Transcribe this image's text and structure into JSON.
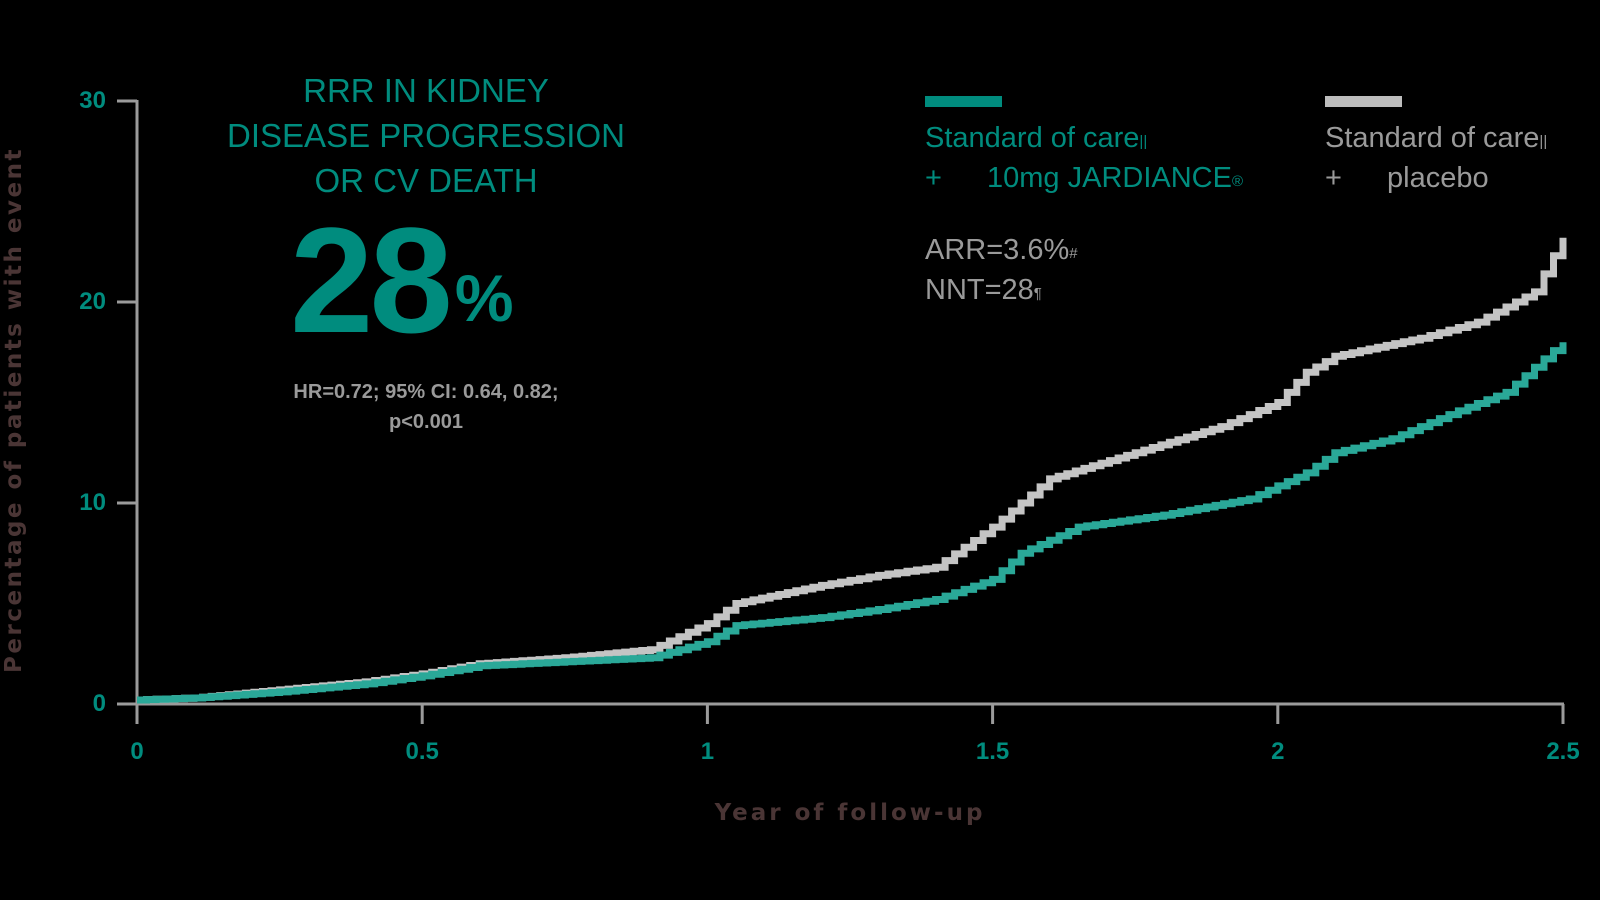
{
  "headline": {
    "lines": [
      "RRR IN KIDNEY",
      "DISEASE PROGRESSION",
      "OR CV DEATH"
    ],
    "value": "28",
    "value_unit": "%",
    "hr_line1": "HR=0.72; 95% CI: 0.64, 0.82;",
    "hr_line2": "p<0.001"
  },
  "legend": {
    "series": [
      {
        "line1": "Standard of care",
        "line1_mark": "||",
        "plus": "+",
        "line2": "10mg JARDIANCE",
        "line2_mark": "®",
        "color": "#008c7e",
        "swatch_color": "#008c7e"
      },
      {
        "line1": "Standard of care",
        "line1_mark": "||",
        "plus": "+",
        "line2": "placebo",
        "line2_mark": "",
        "color": "#9a9a9a",
        "swatch_color": "#bdbdbd"
      }
    ]
  },
  "stats": {
    "arr": "ARR=3.6%",
    "arr_mark": "#",
    "nnt": "NNT=28",
    "nnt_mark": "¶"
  },
  "axes": {
    "ylabel": "Percentage of patients with event",
    "xlabel": "Year of follow-up",
    "yticks": [
      "0",
      "10",
      "20",
      "30"
    ],
    "xticks": [
      "0",
      "0.5",
      "1",
      "1.5",
      "2",
      "2.5"
    ]
  },
  "colors": {
    "teal": "#008c7e",
    "teal_line": "#2aa898",
    "gray_text": "#9a9a9a",
    "gray_line": "#c4c4c4",
    "axis": "#9b9b9b",
    "axis_title": "#4a3535",
    "background": "#000000"
  },
  "chart_data": {
    "type": "line",
    "title": "RRR in kidney disease progression or CV death: 28%",
    "xlabel": "Year of follow-up",
    "ylabel": "Percentage of patients with event",
    "xlim": [
      0,
      2.5
    ],
    "ylim": [
      0,
      30
    ],
    "xticks": [
      0,
      0.5,
      1,
      1.5,
      2,
      2.5
    ],
    "yticks": [
      0,
      10,
      20,
      30
    ],
    "grid": false,
    "legend_position": "top-right",
    "series": [
      {
        "name": "Standard of care + 10mg JARDIANCE",
        "color": "#2aa898",
        "x": [
          0,
          0.1,
          0.25,
          0.4,
          0.5,
          0.6,
          0.75,
          0.9,
          1.0,
          1.05,
          1.2,
          1.3,
          1.4,
          1.5,
          1.55,
          1.65,
          1.8,
          1.95,
          2.05,
          2.1,
          2.2,
          2.3,
          2.4,
          2.5
        ],
        "values": [
          0.2,
          0.3,
          0.6,
          1.0,
          1.4,
          1.9,
          2.1,
          2.3,
          3.1,
          3.9,
          4.3,
          4.7,
          5.2,
          6.2,
          7.5,
          8.8,
          9.4,
          10.2,
          11.5,
          12.5,
          13.2,
          14.4,
          15.5,
          18.0
        ]
      },
      {
        "name": "Standard of care + placebo",
        "color": "#c4c4c4",
        "x": [
          0,
          0.1,
          0.25,
          0.4,
          0.5,
          0.6,
          0.75,
          0.9,
          1.0,
          1.05,
          1.2,
          1.3,
          1.4,
          1.5,
          1.6,
          1.75,
          1.9,
          2.0,
          2.05,
          2.1,
          2.25,
          2.35,
          2.45,
          2.5
        ],
        "values": [
          0.2,
          0.3,
          0.7,
          1.1,
          1.5,
          2.0,
          2.3,
          2.7,
          4.0,
          5.0,
          5.9,
          6.4,
          6.8,
          8.8,
          11.2,
          12.5,
          13.8,
          15.0,
          16.5,
          17.3,
          18.2,
          19.0,
          20.5,
          23.2
        ]
      }
    ],
    "annotations": [
      "RRR IN KIDNEY DISEASE PROGRESSION OR CV DEATH 28%",
      "HR=0.72; 95% CI: 0.64, 0.82; p<0.001",
      "ARR=3.6%#",
      "NNT=28¶"
    ]
  }
}
